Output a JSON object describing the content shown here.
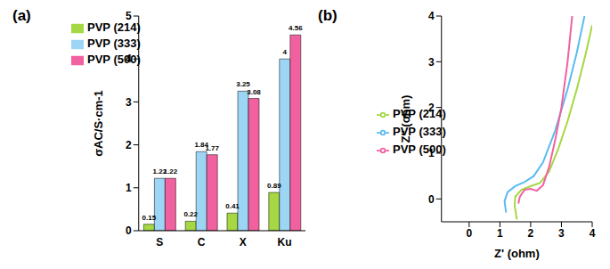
{
  "chart_data": [
    {
      "type": "bar",
      "title": "(a)",
      "ylabel": "σAC/S·cm-1",
      "categories": [
        "S",
        "C",
        "X",
        "Ku"
      ],
      "series": [
        {
          "name": "PVP (214)",
          "color": "#a6d843",
          "values": [
            0.15,
            0.22,
            0.41,
            0.89
          ]
        },
        {
          "name": "PVP (333)",
          "color": "#9dd6f5",
          "values": [
            1.22,
            1.84,
            3.25,
            4
          ]
        },
        {
          "name": "PVP (500)",
          "color": "#f2619f",
          "values": [
            1.22,
            1.77,
            3.08,
            4.56
          ]
        }
      ],
      "ylim": [
        0,
        5
      ],
      "yticks": [
        0,
        1,
        2,
        3,
        4,
        5
      ],
      "data_labels": true,
      "legend": "upper left"
    },
    {
      "type": "line",
      "title": "(b)",
      "xlabel": "Z' (ohm)",
      "ylabel": "Z'' (ohm)",
      "series": [
        {
          "name": "PVP (214)",
          "color": "#a6d843",
          "x": [
            1.55,
            1.48,
            1.5,
            1.7,
            2.0,
            2.3,
            2.6,
            2.9,
            3.2,
            3.5,
            3.8,
            4.0
          ],
          "values": [
            -0.45,
            -0.15,
            0.05,
            0.2,
            0.28,
            0.35,
            0.6,
            1.1,
            1.7,
            2.4,
            3.2,
            3.8
          ]
        },
        {
          "name": "PVP (333)",
          "color": "#5bbcf0",
          "x": [
            1.2,
            1.15,
            1.25,
            1.5,
            1.8,
            2.1,
            2.4,
            2.8,
            3.2,
            3.5,
            3.75
          ],
          "values": [
            -0.3,
            -0.05,
            0.15,
            0.28,
            0.37,
            0.5,
            0.8,
            1.5,
            2.4,
            3.2,
            4
          ]
        },
        {
          "name": "PVP (500)",
          "color": "#f2619f",
          "x": [
            1.6,
            1.65,
            1.8,
            2.0,
            2.2,
            2.4,
            2.6,
            2.8,
            3.0,
            3.2,
            3.35
          ],
          "values": [
            -0.1,
            0.05,
            0.2,
            0.22,
            0.18,
            0.3,
            0.7,
            1.3,
            2.0,
            3.0,
            4
          ]
        }
      ],
      "xlim": [
        -0.9,
        4
      ],
      "xticks": [
        0,
        1,
        2,
        3,
        4
      ],
      "ylim": [
        -0.5,
        4
      ],
      "yticks": [
        0,
        1,
        2,
        3,
        4
      ],
      "legend": "center left"
    }
  ]
}
